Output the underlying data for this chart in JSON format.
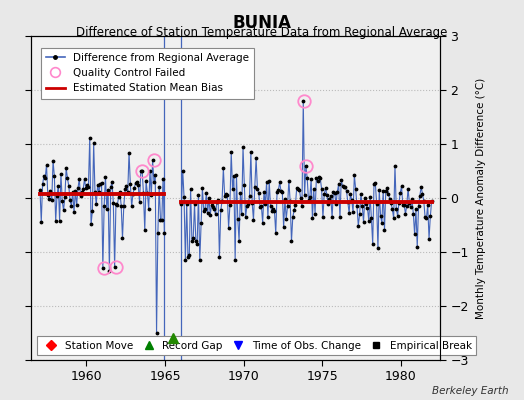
{
  "title": "BUNIA",
  "subtitle": "Difference of Station Temperature Data from Regional Average",
  "ylabel": "Monthly Temperature Anomaly Difference (°C)",
  "xlabel_bottom": "Berkeley Earth",
  "ylim": [
    -3,
    3
  ],
  "xlim": [
    1956.5,
    1982.5
  ],
  "xticks": [
    1960,
    1965,
    1970,
    1975,
    1980
  ],
  "yticks": [
    -3,
    -2,
    -1,
    0,
    1,
    2,
    3
  ],
  "bg_color": "#e8e8e8",
  "plot_bg_color": "#f0f0f0",
  "line_color": "#4466bb",
  "bias_color": "#cc0000",
  "qc_color": "#ff88cc",
  "gap_color": "#228800",
  "period1_start": 1957.042,
  "period1_end": 1964.958,
  "period2_start": 1966.042,
  "period2_end": 1981.958,
  "bias1_y": 0.08,
  "bias2_y": -0.07,
  "gap_marker_x": 1965.5,
  "gap_marker_y": -2.6,
  "vline1_x": 1964.96,
  "vline2_x": 1966.04,
  "seed1": 17,
  "seed2": 99
}
